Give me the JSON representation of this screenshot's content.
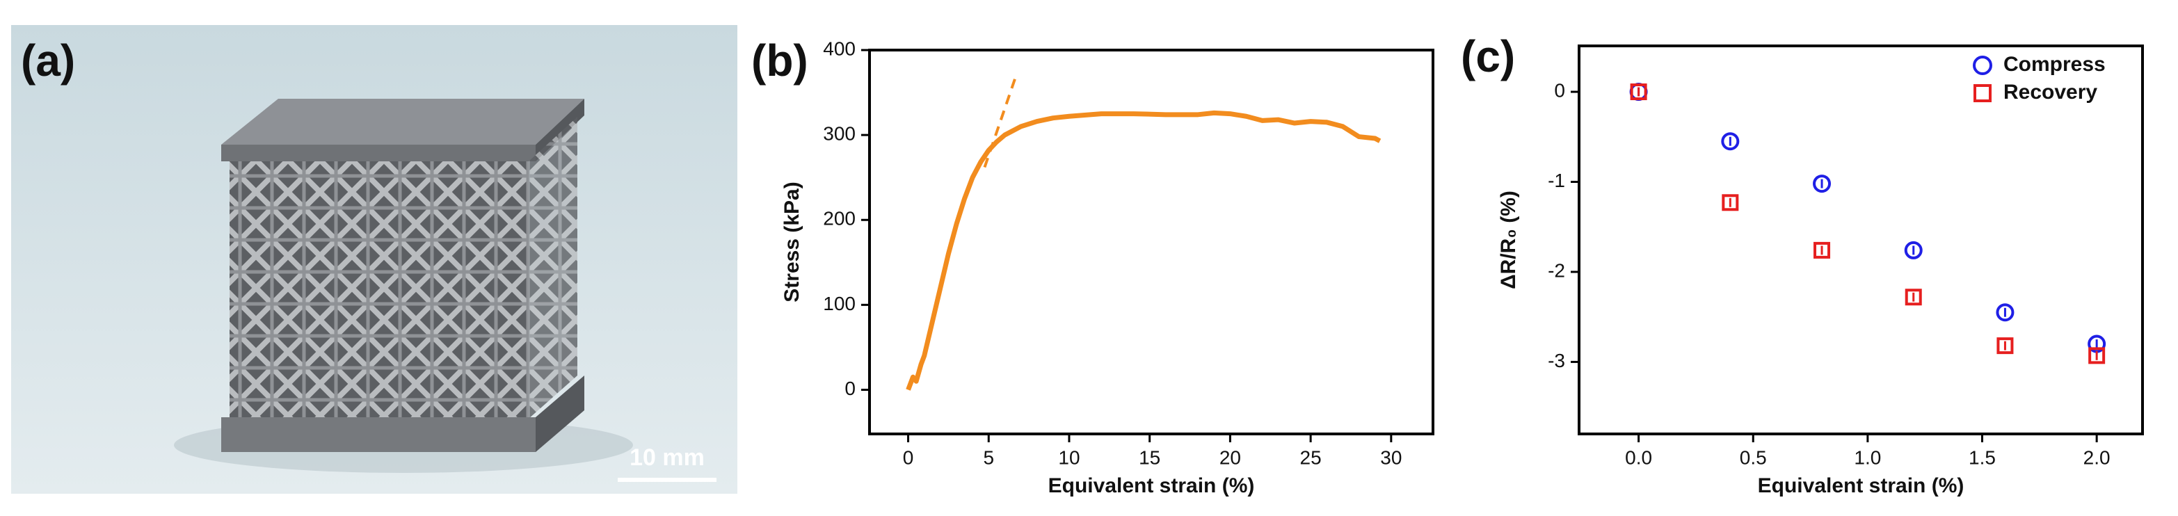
{
  "figure": {
    "label": "(a)",
    "scale_bar": "10 mm"
  },
  "chart_data": [
    {
      "type": "line",
      "panel_label": "(b)",
      "x_label": "Equivalent strain (%)",
      "y_label": "Stress (kPa)",
      "xlim": [
        -2.4,
        32.6
      ],
      "ylim": [
        -52,
        400
      ],
      "xticks": [
        0,
        5,
        10,
        15,
        20,
        25,
        30
      ],
      "yticks": [
        0,
        100,
        200,
        300,
        400
      ],
      "series": [
        {
          "color": "#f28c1e",
          "x": [
            0,
            0.3,
            0.5,
            0.8,
            1,
            1.5,
            2,
            2.5,
            3,
            3.5,
            4,
            4.5,
            5,
            5.5,
            6,
            7,
            8,
            9,
            10,
            12,
            14,
            16,
            18,
            19,
            20,
            21,
            22,
            23,
            24,
            25,
            26,
            27,
            28,
            29,
            29.3
          ],
          "values": [
            0,
            15,
            10,
            30,
            40,
            80,
            120,
            160,
            195,
            225,
            250,
            268,
            282,
            292,
            300,
            310,
            316,
            320,
            322,
            325,
            325,
            324,
            324,
            326,
            325,
            322,
            317,
            318,
            314,
            316,
            315,
            310,
            298,
            296,
            293
          ]
        },
        {
          "color": "#f28c1e",
          "dashed": true,
          "x": [
            4.75,
            6.65
          ],
          "values": [
            262,
            367
          ]
        }
      ]
    },
    {
      "type": "scatter",
      "panel_label": "(c)",
      "x_label": "Equivalent strain (%)",
      "y_label": "ΔR/R₀ (%)",
      "xlim": [
        -0.26,
        2.2
      ],
      "ylim": [
        -3.8,
        0.51
      ],
      "xticks": [
        {
          "value": 0,
          "label": "0.0"
        },
        0.5,
        {
          "value": 1,
          "label": "1.0"
        },
        1.5,
        {
          "value": 2,
          "label": "2.0"
        }
      ],
      "yticks": [
        0,
        -1,
        -2,
        -3
      ],
      "legend": "upper right",
      "series": [
        {
          "name": "Compress",
          "color": "#1f1fe6",
          "marker": "circle",
          "x": [
            0,
            0.4,
            0.8,
            1.2,
            1.6,
            2.0
          ],
          "values": [
            0,
            -0.55,
            -1.02,
            -1.76,
            -2.45,
            -2.8
          ],
          "errors": [
            0.05,
            0.05,
            0.05,
            0.05,
            0.05,
            0.05
          ]
        },
        {
          "name": "Recovery",
          "color": "#e61f1f",
          "marker": "square",
          "x": [
            0,
            0.4,
            0.8,
            1.2,
            1.6,
            2.0
          ],
          "values": [
            0,
            -1.23,
            -1.76,
            -2.28,
            -2.82,
            -2.93
          ],
          "errors": [
            0.05,
            0.05,
            0.05,
            0.05,
            0.05,
            0.05
          ]
        }
      ]
    }
  ]
}
